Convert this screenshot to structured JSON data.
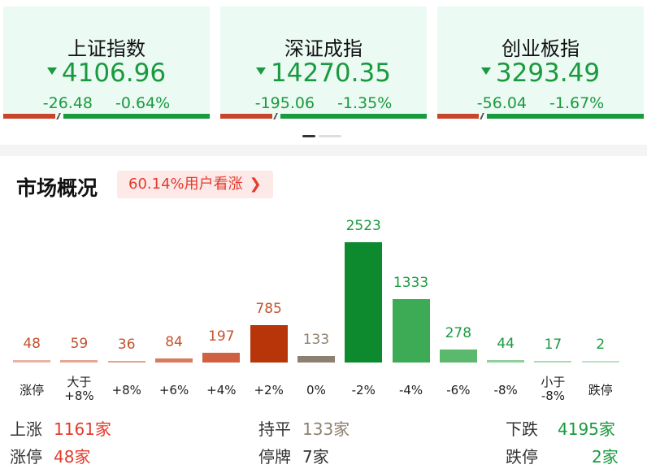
{
  "indices": [
    {
      "name": "上证指数",
      "price": "4106.96",
      "change": "-26.48",
      "pct": "-0.64%",
      "up_ratio": 0.25
    },
    {
      "name": "深证成指",
      "price": "14270.35",
      "change": "-195.06",
      "pct": "-1.35%",
      "up_ratio": 0.25
    },
    {
      "name": "创业板指",
      "price": "3293.49",
      "change": "-56.04",
      "pct": "-1.67%",
      "up_ratio": 0.2
    }
  ],
  "market": {
    "title": "市场概况",
    "sentiment": "60.14%用户看涨"
  },
  "chart_data": {
    "type": "bar",
    "categories": [
      "涨停",
      "大于+8%",
      "+8%",
      "+6%",
      "+4%",
      "+2%",
      "0%",
      "-2%",
      "-4%",
      "-6%",
      "-8%",
      "小于-8%",
      "跌停"
    ],
    "category_lines": [
      [
        "涨停"
      ],
      [
        "大于",
        "+8%"
      ],
      [
        "+8%"
      ],
      [
        "+6%"
      ],
      [
        "+4%"
      ],
      [
        "+2%"
      ],
      [
        "0%"
      ],
      [
        "-2%"
      ],
      [
        "-4%"
      ],
      [
        "-6%"
      ],
      [
        "-8%"
      ],
      [
        "小于",
        "-8%"
      ],
      [
        "跌停"
      ]
    ],
    "values": [
      48,
      59,
      36,
      84,
      197,
      785,
      133,
      2523,
      1333,
      278,
      44,
      17,
      2
    ],
    "colors": [
      "#e9b3a6",
      "#e5a695",
      "#e3a08f",
      "#d87a5f",
      "#d06040",
      "#b8350a",
      "#8c8070",
      "#0e8a2e",
      "#3daa55",
      "#5bb96e",
      "#8fd09c",
      "#a8dab2",
      "#b9e2c1"
    ],
    "label_colors": [
      "#c4522e",
      "#c4522e",
      "#c4522e",
      "#c4522e",
      "#c4522e",
      "#c4522e",
      "#8e8171",
      "#1a9a3e",
      "#1a9a3e",
      "#1a9a3e",
      "#1a9a3e",
      "#1a9a3e",
      "#1a9a3e"
    ],
    "ylim": [
      0,
      2523
    ]
  },
  "stats": {
    "up_label": "上涨",
    "up_value": "1161家",
    "flat_label": "持平",
    "flat_value": "133家",
    "down_label": "下跌",
    "down_value": "4195家",
    "limit_up_label": "涨停",
    "limit_up_value": "48家",
    "suspended_label": "停牌",
    "suspended_value": "7家",
    "limit_down_label": "跌停",
    "limit_down_value": "2家"
  }
}
